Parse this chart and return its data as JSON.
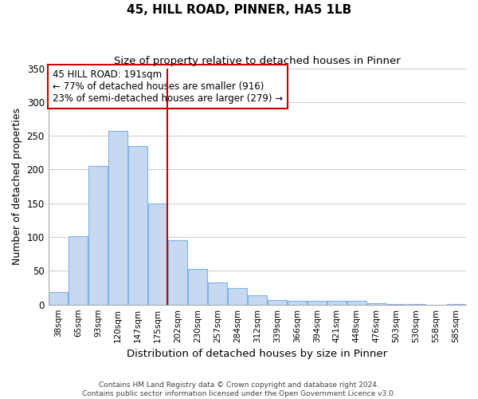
{
  "title": "45, HILL ROAD, PINNER, HA5 1LB",
  "subtitle": "Size of property relative to detached houses in Pinner",
  "xlabel": "Distribution of detached houses by size in Pinner",
  "ylabel": "Number of detached properties",
  "bar_labels": [
    "38sqm",
    "65sqm",
    "93sqm",
    "120sqm",
    "147sqm",
    "175sqm",
    "202sqm",
    "230sqm",
    "257sqm",
    "284sqm",
    "312sqm",
    "339sqm",
    "366sqm",
    "394sqm",
    "421sqm",
    "448sqm",
    "476sqm",
    "503sqm",
    "530sqm",
    "558sqm",
    "585sqm"
  ],
  "bar_values": [
    19,
    101,
    205,
    257,
    235,
    150,
    95,
    53,
    33,
    25,
    14,
    7,
    5,
    5,
    6,
    5,
    2,
    1,
    1,
    0,
    1
  ],
  "bar_color": "#c6d9f0",
  "bar_edge_color": "#7fb3e8",
  "vline_color": "#cc0000",
  "annotation_line1": "45 HILL ROAD: 191sqm",
  "annotation_line2": "← 77% of detached houses are smaller (916)",
  "annotation_line3": "23% of semi-detached houses are larger (279) →",
  "annotation_box_edgecolor": "#cc0000",
  "ylim": [
    0,
    350
  ],
  "yticks": [
    0,
    50,
    100,
    150,
    200,
    250,
    300,
    350
  ],
  "footer1": "Contains HM Land Registry data © Crown copyright and database right 2024.",
  "footer2": "Contains public sector information licensed under the Open Government Licence v3.0.",
  "background_color": "#ffffff",
  "grid_color": "#cccccc"
}
